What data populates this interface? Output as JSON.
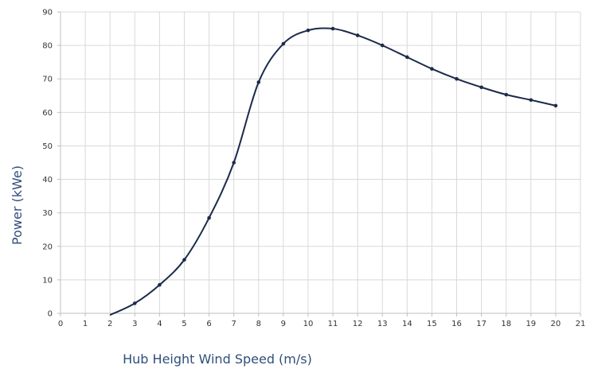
{
  "chart_data": {
    "type": "line",
    "xlabel": "Hub Height Wind Speed (m/s)",
    "ylabel": "Power (kWe)",
    "xlim": [
      0,
      21
    ],
    "ylim": [
      0,
      90
    ],
    "xticks": [
      0,
      1,
      2,
      3,
      4,
      5,
      6,
      7,
      8,
      9,
      10,
      11,
      12,
      13,
      14,
      15,
      16,
      17,
      18,
      19,
      20,
      21
    ],
    "yticks": [
      0,
      10,
      20,
      30,
      40,
      50,
      60,
      70,
      80,
      90
    ],
    "grid": true,
    "colors": {
      "line": "#1c2b4b",
      "axis_title": "#2f4f7a"
    },
    "series": [
      {
        "x": [
          2,
          3,
          4,
          5,
          6,
          7,
          8,
          9,
          10,
          11,
          12,
          13,
          14,
          15,
          16,
          17,
          18,
          19,
          20
        ],
        "values": [
          -0.5,
          3,
          8.5,
          16,
          28.5,
          45,
          69,
          80.5,
          84.5,
          85,
          83,
          80,
          76.5,
          73,
          70,
          67.5,
          65.3,
          63.7,
          62
        ]
      }
    ]
  }
}
